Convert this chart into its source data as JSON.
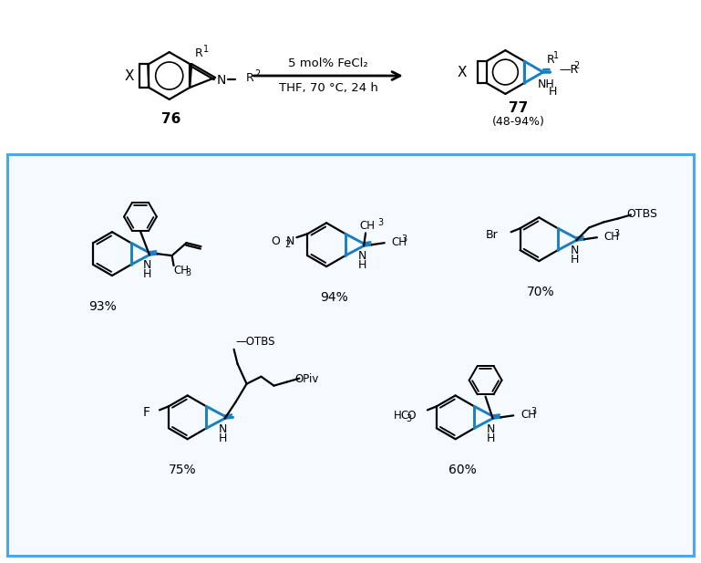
{
  "fig_width": 7.69,
  "fig_height": 6.17,
  "dpi": 100,
  "bg": "#ffffff",
  "box_edge": "#4da6e8",
  "blue": "#1a7fc1",
  "black": "#000000",
  "box_bg": "#f5faff",
  "reaction_line1": "5 mol% FeCl₂",
  "reaction_line2": "THF, 70 °C, 24 h",
  "compound76": "76",
  "compound77": "77",
  "yield_range": "(48-94%)",
  "yields": [
    "93%",
    "94%",
    "70%",
    "75%",
    "60%"
  ]
}
